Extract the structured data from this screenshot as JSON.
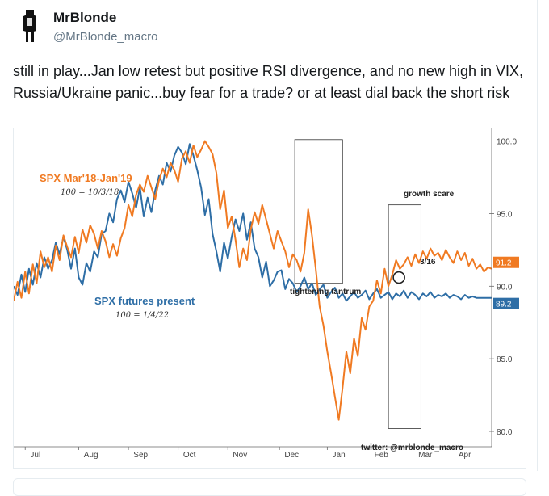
{
  "tweet": {
    "display_name": "MrBlonde",
    "handle": "@MrBlonde_macro",
    "text": "still in play...Jan low retest but positive RSI divergence, and no new high in VIX, Russia/Ukraine panic...buy fear for a trade? or at least dial back the short risk"
  },
  "chart_data": {
    "type": "line",
    "series": [
      {
        "name": "SPX Mar'18-Jan'19",
        "subtitle": "100 = 10/3/18",
        "color": "#f07a22",
        "x": [
          0,
          2,
          4,
          6,
          8,
          10,
          12,
          14,
          16,
          18,
          20,
          22,
          24,
          26,
          28,
          30,
          32,
          34,
          36,
          38,
          40,
          42,
          44,
          46,
          48,
          50,
          52,
          54,
          56,
          58,
          60,
          62,
          64,
          66,
          68,
          70,
          72,
          74,
          76,
          78,
          80,
          82,
          84,
          86,
          88,
          90,
          92,
          94,
          96,
          98,
          100,
          102,
          104,
          106,
          108,
          110,
          112,
          114,
          116,
          118,
          120,
          122,
          124,
          126,
          128,
          130,
          132,
          134,
          136,
          138,
          140,
          142,
          144,
          146,
          148,
          150,
          152,
          154,
          156,
          158,
          160,
          162,
          164,
          166,
          168,
          170,
          172,
          174,
          176,
          178,
          180,
          182,
          184,
          186,
          188,
          190,
          192,
          194,
          196,
          198,
          200,
          202,
          204,
          206,
          208,
          210,
          212,
          214,
          216,
          218,
          220,
          222,
          224,
          226,
          228,
          230,
          232,
          234,
          236,
          238,
          240,
          242,
          244,
          246,
          248,
          250
        ],
        "values": [
          89.0,
          90.3,
          89.2,
          91.0,
          89.5,
          91.5,
          90.2,
          92.4,
          91.3,
          92.0,
          91.0,
          92.8,
          91.8,
          93.5,
          92.7,
          92.0,
          93.4,
          92.3,
          93.9,
          93.0,
          94.2,
          93.6,
          92.6,
          93.8,
          93.1,
          92.0,
          92.9,
          92.1,
          93.3,
          94.0,
          95.6,
          94.8,
          96.3,
          97.0,
          96.5,
          97.6,
          96.8,
          96.0,
          97.3,
          98.1,
          97.5,
          98.5,
          98.0,
          97.2,
          98.8,
          99.3,
          98.5,
          99.7,
          98.9,
          99.4,
          100.0,
          99.6,
          99.1,
          97.8,
          95.3,
          96.6,
          94.0,
          94.8,
          93.2,
          91.3,
          92.6,
          91.8,
          93.9,
          95.1,
          94.3,
          95.6,
          94.6,
          93.6,
          92.6,
          93.8,
          93.1,
          92.4,
          91.3,
          92.2,
          91.8,
          91.0,
          92.3,
          95.3,
          93.5,
          91.2,
          88.6,
          87.3,
          85.5,
          84.0,
          82.4,
          80.8,
          83.0,
          85.5,
          84.0,
          86.4,
          85.2,
          87.8,
          87.0,
          88.6,
          89.0,
          90.4,
          89.5,
          91.2,
          90.0,
          90.8,
          91.8,
          91.2,
          91.5,
          92.0,
          91.4,
          92.2,
          91.6,
          92.4,
          91.9,
          92.6,
          92.1,
          92.3,
          91.8,
          92.5,
          92.0,
          91.6,
          92.4,
          91.8,
          92.3,
          91.4,
          91.9,
          91.2,
          91.5,
          91.0,
          91.3,
          91.2
        ],
        "end_label": "91.2"
      },
      {
        "name": "SPX futures present",
        "subtitle": "100 = 1/4/22",
        "color": "#2e6ea6",
        "x": [
          0,
          2,
          4,
          6,
          8,
          10,
          12,
          14,
          16,
          18,
          20,
          22,
          24,
          26,
          28,
          30,
          32,
          34,
          36,
          38,
          40,
          42,
          44,
          46,
          48,
          50,
          52,
          54,
          56,
          58,
          60,
          62,
          64,
          66,
          68,
          70,
          72,
          74,
          76,
          78,
          80,
          82,
          84,
          86,
          88,
          90,
          92,
          94,
          96,
          98,
          100,
          102,
          104,
          106,
          108,
          110,
          112,
          114,
          116,
          118,
          120,
          122,
          124,
          126,
          128,
          130,
          132,
          134,
          136,
          138,
          140,
          142,
          144,
          146,
          148,
          150,
          152,
          154,
          156,
          158,
          160,
          162,
          164,
          166,
          168,
          170,
          172,
          174,
          176,
          178,
          180,
          182,
          184,
          186,
          188,
          190,
          192,
          194,
          196,
          198,
          200,
          202,
          204,
          206,
          208,
          210,
          212,
          214,
          216,
          218,
          220,
          222,
          224,
          226,
          228,
          230,
          232,
          234,
          236,
          238,
          240,
          242,
          244,
          246,
          248,
          250
        ],
        "values": [
          90.0,
          89.4,
          90.8,
          89.6,
          91.2,
          90.1,
          91.6,
          90.6,
          92.0,
          91.2,
          91.8,
          93.0,
          92.2,
          93.4,
          92.5,
          91.2,
          92.6,
          90.6,
          90.1,
          91.6,
          91.0,
          92.4,
          92.0,
          93.6,
          93.8,
          95.0,
          94.4,
          96.0,
          96.6,
          95.8,
          97.2,
          96.4,
          95.4,
          96.8,
          94.8,
          96.1,
          95.1,
          96.6,
          97.6,
          97.0,
          98.5,
          97.9,
          99.0,
          99.6,
          99.2,
          98.4,
          99.8,
          99.0,
          98.0,
          96.8,
          94.9,
          96.0,
          93.6,
          92.4,
          91.0,
          93.0,
          91.9,
          93.4,
          94.6,
          93.8,
          95.0,
          93.2,
          94.4,
          92.6,
          92.0,
          90.6,
          91.7,
          90.0,
          90.4,
          91.0,
          91.1,
          89.8,
          90.5,
          90.2,
          89.6,
          90.0,
          90.6,
          89.8,
          90.2,
          89.4,
          89.8,
          90.1,
          89.2,
          89.6,
          89.9,
          89.2,
          89.5,
          89.0,
          89.3,
          89.6,
          89.2,
          89.4,
          89.7,
          89.1,
          89.5,
          89.8,
          89.2,
          89.4,
          89.6,
          89.1,
          89.5,
          89.3,
          89.7,
          89.2,
          89.6,
          89.4,
          89.1,
          89.5,
          89.3,
          89.6,
          89.2,
          89.4,
          89.3,
          89.5,
          89.2,
          89.4,
          89.3,
          89.1,
          89.4,
          89.2,
          89.3,
          89.2,
          89.2,
          89.2,
          89.2,
          89.2
        ],
        "end_label": "89.2"
      }
    ],
    "y_axis": {
      "position": "right",
      "ticks": [
        "100.0",
        "95.0",
        "90.0",
        "85.0",
        "80.0"
      ],
      "tick_values": [
        100,
        95,
        90,
        85,
        80
      ],
      "ylim": [
        79.5,
        100.2
      ]
    },
    "x_axis": {
      "ticks": [
        "Jul",
        "Aug",
        "Sep",
        "Oct",
        "Nov",
        "Dec",
        "Jan",
        "Feb",
        "Mar",
        "Apr"
      ]
    },
    "annotations": [
      {
        "text": "tightening tantrum"
      },
      {
        "text": "growth scare"
      },
      {
        "text": "3/16"
      },
      {
        "text": "twitter: @mrblonde_macro"
      }
    ],
    "grid": false
  },
  "colors": {
    "orange": "#f07a22",
    "blue": "#2e6ea6",
    "text": "#14171a",
    "muted": "#657786"
  }
}
